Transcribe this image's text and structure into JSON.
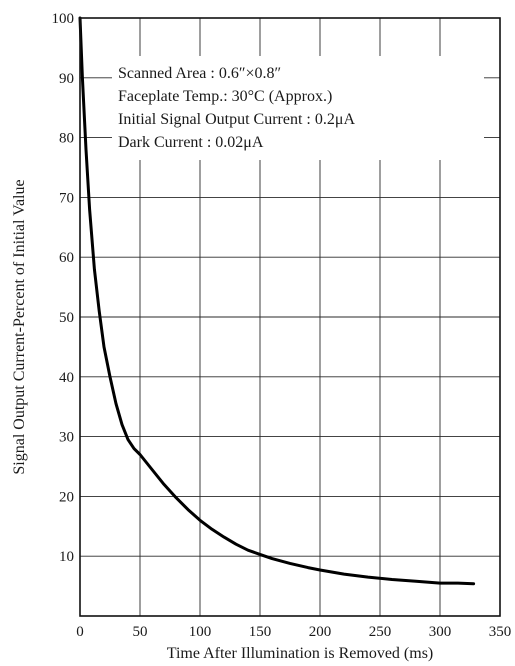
{
  "chart_data": {
    "type": "line",
    "title": "",
    "xlabel": "Time After Illumination is Removed (ms)",
    "ylabel": "Signal Output Current‐Percent of Initial Value",
    "xlim": [
      0,
      350
    ],
    "ylim": [
      0,
      100
    ],
    "x_ticks": [
      0,
      50,
      100,
      150,
      200,
      250,
      300,
      350
    ],
    "y_ticks": [
      10,
      20,
      30,
      40,
      50,
      60,
      70,
      80,
      90,
      100
    ],
    "grid": true,
    "annotations": [
      "Scanned Area : 0.6″×0.8″",
      "Faceplate Temp.: 30°C (Approx.)",
      "Initial Signal Output Current : 0.2μA",
      "Dark Current : 0.02μA"
    ],
    "series": [
      {
        "x": [
          0,
          2,
          5,
          8,
          12,
          16,
          20,
          25,
          30,
          35,
          40,
          45,
          50,
          60,
          70,
          80,
          90,
          100,
          110,
          120,
          130,
          140,
          150,
          160,
          175,
          190,
          200,
          220,
          240,
          260,
          280,
          300,
          315,
          328
        ],
        "y": [
          100,
          90,
          78,
          68,
          58,
          51,
          45,
          40,
          35.5,
          32,
          29.5,
          28,
          27,
          24.5,
          22,
          19.8,
          17.8,
          16,
          14.5,
          13.2,
          12,
          11,
          10.3,
          9.6,
          8.8,
          8.1,
          7.7,
          7,
          6.5,
          6.1,
          5.8,
          5.5,
          5.5,
          5.4
        ]
      }
    ]
  }
}
